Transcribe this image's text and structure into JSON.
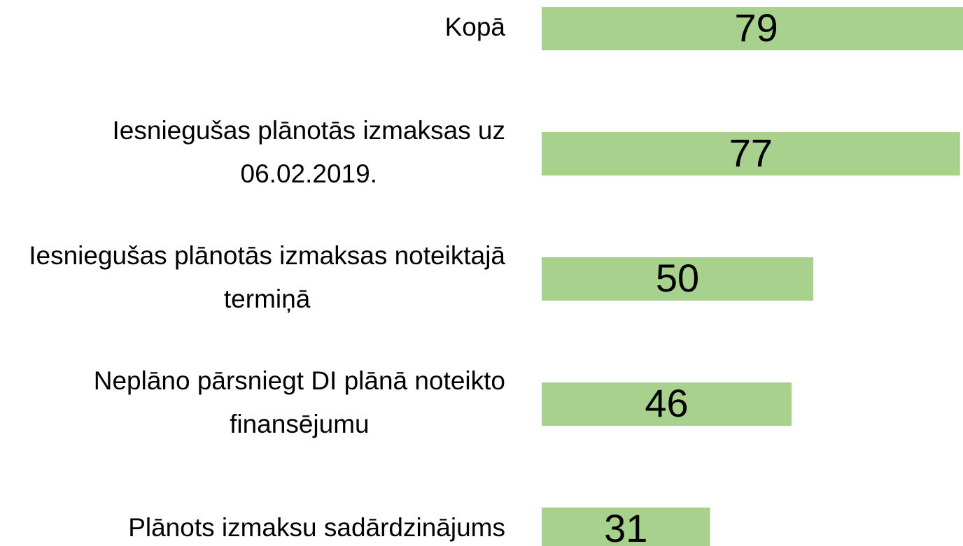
{
  "chart_data": {
    "type": "bar",
    "orientation": "horizontal",
    "categories": [
      "Kopā",
      "Iesniegušas plānotās izmaksas uz 06.02.2019.",
      "Iesniegušas plānotās izmaksas noteiktajā termiņā",
      "Neplāno pārsniegt DI plānā noteikto finansējumu",
      "Plānots izmaksu sadārdzinājums"
    ],
    "values": [
      79,
      77,
      50,
      46,
      31
    ],
    "color": "#a9d18e",
    "xlim": [
      0,
      80
    ]
  }
}
